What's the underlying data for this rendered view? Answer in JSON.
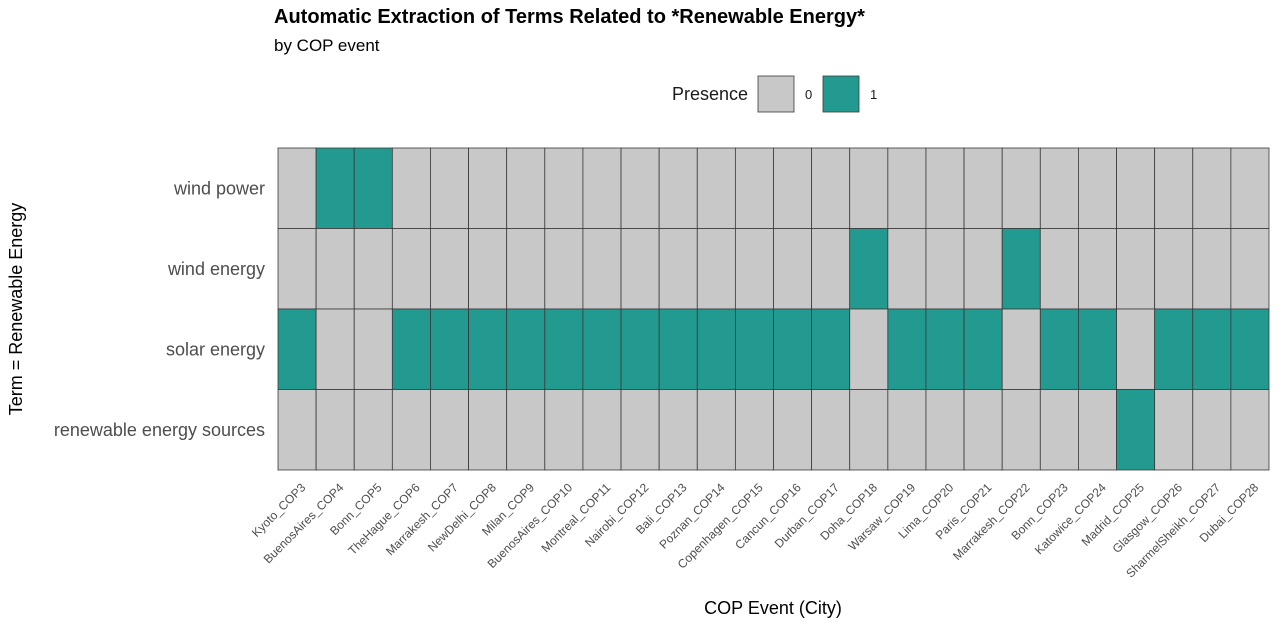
{
  "chart_data": {
    "type": "heatmap",
    "title": "Automatic Extraction of Terms Related to *Renewable Energy*",
    "subtitle": "by COP event",
    "xlabel": "COP Event (City)",
    "ylabel": "Term = Renewable Energy",
    "legend": {
      "title": "Presence",
      "placement": "top",
      "items": [
        {
          "label": "0",
          "value": 0
        },
        {
          "label": "1",
          "value": 1
        }
      ]
    },
    "colors": {
      "0": "#c8c8c8",
      "1": "#239a8f",
      "border": "#3a3a3a"
    },
    "x": [
      "Kyoto_COP3",
      "BuenosAires_COP4",
      "Bonn_COP5",
      "TheHague_COP6",
      "Marrakesh_COP7",
      "NewDelhi_COP8",
      "Milan_COP9",
      "BuenosAires_COP10",
      "Montreal_COP11",
      "Nairobi_COP12",
      "Bali_COP13",
      "Poznan_COP14",
      "Copenhagen_COP15",
      "Cancun_COP16",
      "Durban_COP17",
      "Doha_COP18",
      "Warsaw_COP19",
      "Lima_COP20",
      "Paris_COP21",
      "Marrakesh_COP22",
      "Bonn_COP23",
      "Katowice_COP24",
      "Madrid_COP25",
      "Glasgow_COP26",
      "SharmelSheikh_COP27",
      "Dubai_COP28"
    ],
    "y": [
      "wind power",
      "wind energy",
      "solar energy",
      "renewable energy sources"
    ],
    "values": [
      [
        0,
        1,
        1,
        0,
        0,
        0,
        0,
        0,
        0,
        0,
        0,
        0,
        0,
        0,
        0,
        0,
        0,
        0,
        0,
        0,
        0,
        0,
        0,
        0,
        0,
        0
      ],
      [
        0,
        0,
        0,
        0,
        0,
        0,
        0,
        0,
        0,
        0,
        0,
        0,
        0,
        0,
        0,
        1,
        0,
        0,
        0,
        1,
        0,
        0,
        0,
        0,
        0,
        0
      ],
      [
        1,
        0,
        0,
        1,
        1,
        1,
        1,
        1,
        1,
        1,
        1,
        1,
        1,
        1,
        1,
        0,
        1,
        1,
        1,
        0,
        1,
        1,
        0,
        1,
        1,
        1
      ],
      [
        0,
        0,
        0,
        0,
        0,
        0,
        0,
        0,
        0,
        0,
        0,
        0,
        0,
        0,
        0,
        0,
        0,
        0,
        0,
        0,
        0,
        0,
        1,
        0,
        0,
        0
      ]
    ]
  }
}
